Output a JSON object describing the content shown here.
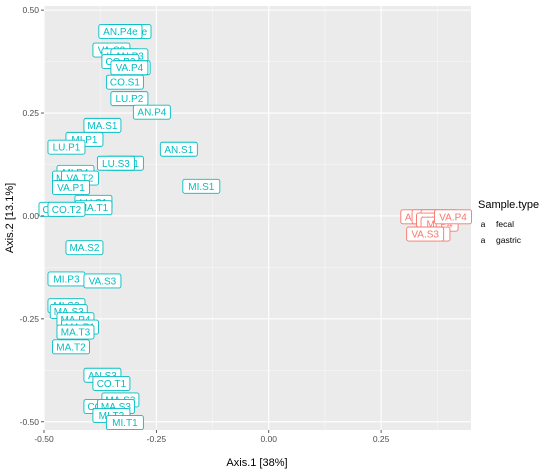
{
  "chart_data": {
    "type": "scatter",
    "xlabel": "Axis.1   [38%]",
    "ylabel": "Axis.2   [13.1%]",
    "xlim": [
      -0.5,
      0.45
    ],
    "ylim": [
      -0.52,
      0.51
    ],
    "x_ticks": [
      -0.5,
      -0.25,
      0.0,
      0.25
    ],
    "x_tick_labels": [
      "-0.50",
      "-0.25",
      "0.00",
      "0.25"
    ],
    "y_ticks": [
      -0.5,
      -0.25,
      0.0,
      0.25,
      0.5
    ],
    "y_tick_labels": [
      "-0.50",
      "-0.25",
      "0.00",
      "0.25",
      "0.50"
    ],
    "grid": true,
    "legend": {
      "title": "Sample.type",
      "position": "right",
      "entries": [
        {
          "name": "fecal",
          "key_glyph": "a",
          "color": "#F8766D"
        },
        {
          "name": "gastric",
          "key_glyph": "a",
          "color": "#00BFC4"
        }
      ]
    },
    "series": [
      {
        "name": "gastric",
        "color": "#00BFC4",
        "points": [
          {
            "label": "CO.P4e",
            "x": -0.31,
            "y": 0.448
          },
          {
            "label": "AN.P4e",
            "x": -0.33,
            "y": 0.448
          },
          {
            "label": "VA.S2",
            "x": -0.35,
            "y": 0.403
          },
          {
            "label": "LU.P4",
            "x": -0.33,
            "y": 0.389
          },
          {
            "label": "AN.P3",
            "x": -0.31,
            "y": 0.389
          },
          {
            "label": "CO.P3",
            "x": -0.33,
            "y": 0.375
          },
          {
            "label": "VA.P3",
            "x": -0.305,
            "y": 0.36
          },
          {
            "label": "VA.P4",
            "x": -0.31,
            "y": 0.36
          },
          {
            "label": "CO.S1",
            "x": -0.32,
            "y": 0.325
          },
          {
            "label": "LU.P2",
            "x": -0.31,
            "y": 0.285
          },
          {
            "label": "AN.P4",
            "x": -0.26,
            "y": 0.252
          },
          {
            "label": "MA.S1",
            "x": -0.37,
            "y": 0.22
          },
          {
            "label": "MI.P1",
            "x": -0.41,
            "y": 0.186
          },
          {
            "label": "AN.S1",
            "x": -0.2,
            "y": 0.162
          },
          {
            "label": "LU.P1",
            "x": -0.45,
            "y": 0.167
          },
          {
            "label": "LU.S1",
            "x": -0.32,
            "y": 0.128
          },
          {
            "label": "LU.S3",
            "x": -0.34,
            "y": 0.128
          },
          {
            "label": "MI.S1",
            "x": -0.15,
            "y": 0.072
          },
          {
            "label": "MI.P4",
            "x": -0.43,
            "y": 0.106
          },
          {
            "label": "MA.P2",
            "x": -0.44,
            "y": 0.092
          },
          {
            "label": "VA.T2",
            "x": -0.42,
            "y": 0.092
          },
          {
            "label": "VA.P1",
            "x": -0.44,
            "y": 0.069
          },
          {
            "label": "LU.S1",
            "x": -0.39,
            "y": 0.033
          },
          {
            "label": "MA.T1",
            "x": -0.39,
            "y": 0.02
          },
          {
            "label": "CO.S2",
            "x": -0.47,
            "y": 0.016
          },
          {
            "label": "CO.T2",
            "x": -0.45,
            "y": 0.016
          },
          {
            "label": "MA.S2",
            "x": -0.41,
            "y": -0.077
          },
          {
            "label": "MI.P3",
            "x": -0.45,
            "y": -0.153
          },
          {
            "label": "VA.S3",
            "x": -0.37,
            "y": -0.158
          },
          {
            "label": "MI.S3",
            "x": -0.45,
            "y": -0.218
          },
          {
            "label": "MA.S3",
            "x": -0.445,
            "y": -0.232
          },
          {
            "label": "MA.P4",
            "x": -0.43,
            "y": -0.252
          },
          {
            "label": "MA.P1",
            "x": -0.42,
            "y": -0.27
          },
          {
            "label": "MA.T3",
            "x": -0.43,
            "y": -0.282
          },
          {
            "label": "MA.T2",
            "x": -0.44,
            "y": -0.318
          },
          {
            "label": "AN.S3",
            "x": -0.37,
            "y": -0.387
          },
          {
            "label": "CO.T1",
            "x": -0.35,
            "y": -0.407
          },
          {
            "label": "MA.S3",
            "x": -0.33,
            "y": -0.447
          },
          {
            "label": "CO.P4",
            "x": -0.37,
            "y": -0.463
          },
          {
            "label": "MA.S3",
            "x": -0.34,
            "y": -0.463
          },
          {
            "label": "MI.T2",
            "x": -0.35,
            "y": -0.485
          },
          {
            "label": "MI.T1",
            "x": -0.32,
            "y": -0.502
          }
        ]
      },
      {
        "name": "fecal",
        "color": "#F8766D",
        "points": [
          {
            "label": "AN.P4",
            "x": 0.335,
            "y": -0.002
          },
          {
            "label": "CO.P4",
            "x": 0.36,
            "y": -0.002
          },
          {
            "label": "MA.P4",
            "x": 0.38,
            "y": -0.002
          },
          {
            "label": "LU.P4",
            "x": 0.37,
            "y": -0.01
          },
          {
            "label": "MI.P4",
            "x": 0.38,
            "y": -0.02
          },
          {
            "label": "MI.S3",
            "x": 0.362,
            "y": -0.044
          },
          {
            "label": "VA.S3",
            "x": 0.348,
            "y": -0.044
          },
          {
            "label": "VA.P4",
            "x": 0.41,
            "y": -0.002
          }
        ]
      }
    ]
  }
}
